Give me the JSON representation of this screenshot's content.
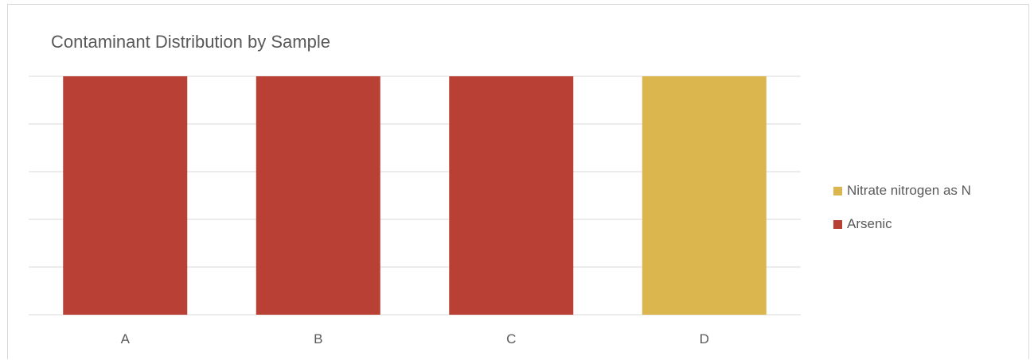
{
  "chart_data": {
    "type": "bar",
    "stacked": true,
    "title": "Contaminant Distribution by Sample",
    "categories": [
      "A",
      "B",
      "C",
      "D"
    ],
    "series": [
      {
        "name": "Arsenic",
        "color": "#b94035",
        "values": [
          1,
          1,
          1,
          0
        ]
      },
      {
        "name": "Nitrate nitrogen as N",
        "color": "#dbb54d",
        "values": [
          0,
          0,
          0,
          1
        ]
      }
    ],
    "ylim": [
      0,
      1
    ],
    "y_gridlines": 5,
    "grid": true,
    "legend_position": "right",
    "legend_order": [
      "Nitrate nitrogen as N",
      "Arsenic"
    ],
    "colors": {
      "gridline": "#d9d9d9",
      "text": "#595959"
    }
  }
}
